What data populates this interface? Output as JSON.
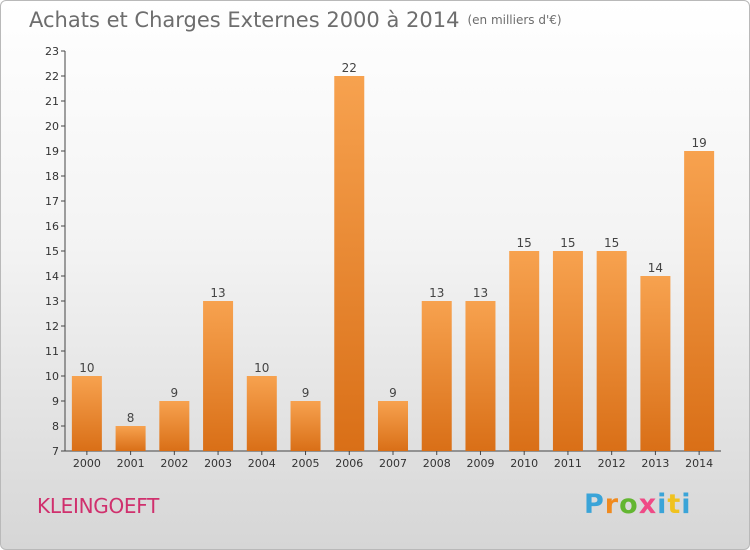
{
  "header": {
    "title": "Achats et Charges Externes 2000 à 2014",
    "unit": "(en milliers d'€)"
  },
  "footer": {
    "commune": "KLEINGOEFT",
    "logo": [
      "P",
      "r",
      "o",
      "x",
      "i",
      "t",
      "i"
    ]
  },
  "colors": {
    "bar_light": "#f7a24f",
    "bar_dark": "#d96f17",
    "title": "#6d6d6d",
    "commune": "#d0306d"
  },
  "chart_data": {
    "type": "bar",
    "title": "Achats et Charges Externes 2000 à 2014",
    "subtitle": "(en milliers d'€)",
    "categories": [
      "2000",
      "2001",
      "2002",
      "2003",
      "2004",
      "2005",
      "2006",
      "2007",
      "2008",
      "2009",
      "2010",
      "2011",
      "2012",
      "2013",
      "2014"
    ],
    "values": [
      10,
      8,
      9,
      13,
      10,
      9,
      22,
      9,
      13,
      13,
      15,
      15,
      15,
      14,
      19
    ],
    "yticks": [
      7,
      8,
      9,
      10,
      11,
      12,
      13,
      14,
      15,
      16,
      17,
      18,
      19,
      20,
      21,
      22,
      23
    ],
    "ylim": [
      7,
      23
    ],
    "grid": false,
    "data_labels": true
  }
}
